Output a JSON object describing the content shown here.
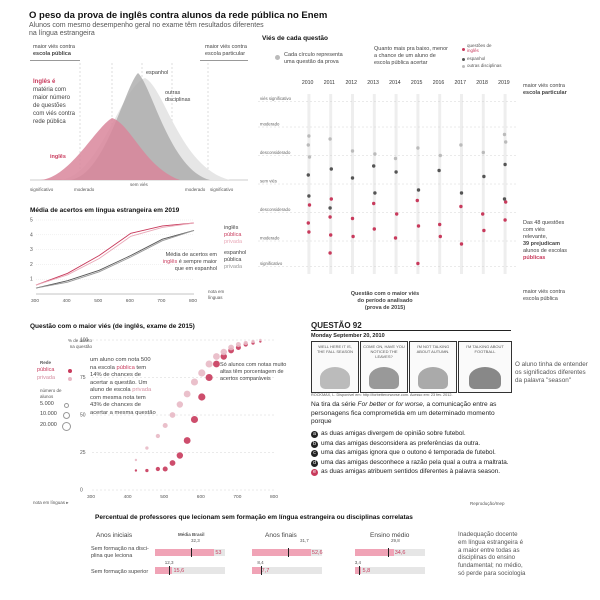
{
  "header": {
    "title": "O peso da prova de inglês contra alunos da rede pública no Enem",
    "subtitle_line1": "Alunos com mesmo desempenho geral no exame têm resultados diferentes",
    "subtitle_line2": "na língua estrangeira"
  },
  "density_panel": {
    "left_arrow_label_1": "maior viés contra",
    "left_arrow_label_2": "escola pública",
    "right_arrow_label_1": "maior viés contra",
    "right_arrow_label_2": "escola particular",
    "note_1": "Inglês é",
    "note_2": "matéria com",
    "note_3": "maior número",
    "note_4": "de questões",
    "note_5": "com viés contra",
    "note_6": "rede pública",
    "label_espanhol": "espanhol",
    "label_outras_1": "outras",
    "label_outras_2": "disciplinas",
    "label_ingles": "inglês",
    "axis_significativo_left": "significativo",
    "axis_moderado_left": "moderado",
    "axis_sem_vies": "sem viés",
    "axis_moderado_right": "moderado",
    "axis_significativo_right": "significativo",
    "colors": {
      "ingles": "#d9869b",
      "espanhol": "#aaaaaa",
      "outras": "#dddddd"
    }
  },
  "line_panel": {
    "title": "Média de acertos em língua estrangeira em 2019",
    "note_1": "Média de acertos em",
    "note_2a": "inglês",
    "note_2b": " é sempre maior",
    "note_3": "que em espanhol",
    "legend_ingles_1": "inglês",
    "legend_ingles_2": "pública",
    "legend_ingles_3": "privada",
    "legend_espanhol_1": "espanhol",
    "legend_espanhol_2": "pública",
    "legend_espanhol_3": "privada",
    "xlabel_1": "nota em",
    "xlabel_2": "línguas"
  },
  "years_panel": {
    "title": "Viés de cada questão",
    "legend_circle_1": "Cada círculo representa",
    "legend_circle_2": "uma questão da prova",
    "legend_rank_1": "Quanto mais pra baixo, menor",
    "legend_rank_2": "a chance de um aluno de",
    "legend_rank_3": "escola pública acertar",
    "legend_items": [
      "questões de",
      "inglês",
      "espanhol",
      "outras disciplinas"
    ],
    "years": [
      "2010",
      "2011",
      "2012",
      "2013",
      "2014",
      "2015",
      "2016",
      "2017",
      "2018",
      "2019"
    ],
    "row_labels": [
      "viés significativo",
      "moderado",
      "desconsiderado",
      "sem viés",
      "desconsiderado",
      "moderado",
      "significativo"
    ],
    "right_top_1": "maior viés contra",
    "right_top_2": "escola particular",
    "right_note_1": "Das 48 questões",
    "right_note_2": "com viés",
    "right_note_3": "relevante,",
    "right_note_4": "39 prejudicam",
    "right_note_5": "alunos de escolas",
    "right_note_6": "públicas",
    "right_bottom_1": "maior viés contra",
    "right_bottom_2": "escola pública",
    "callout_1": "Questão com o maior viés",
    "callout_2": "do período analisado",
    "callout_3": "(prova de 2015)"
  },
  "scatter_panel": {
    "title": "Questão com o maior viés (de inglês, exame de 2015)",
    "ylabel_1": "% de acerto",
    "ylabel_2": "na questão",
    "legend_rede": "Rede",
    "legend_publica": "pública",
    "legend_privada": "privada",
    "legend_numero_1": "número de",
    "legend_numero_2": "alunos",
    "legend_sizes": [
      "5.000",
      "10.000",
      "20.000"
    ],
    "note_left_1": "um aluno com nota 500",
    "note_left_2": "na escola ",
    "note_left_2b": "pública",
    "note_left_2c": " tem",
    "note_left_3": "14% de chances de",
    "note_left_4": "acertar a questão. Um",
    "note_left_5": "aluno de escola ",
    "note_left_5b": "privada",
    "note_left_6": "com mesma nota tem",
    "note_left_7": "43% de chances de",
    "note_left_8": "acertar a mesma questão",
    "note_right_1": "Só alunos com notas muito",
    "note_right_2": "altas têm porcentagem de",
    "note_right_3": "acertos comparáveis",
    "xlabel": "nota em línguas ▸"
  },
  "question_panel": {
    "title": "QUESTÃO 92",
    "comic_date": "Monday September 20, 2010",
    "comic_credit": "ROCKMAX, L. Disponível em: http://forbetterorworse.com. Acesso em: 23 fev. 2012.",
    "panel_texts": [
      "WELL HERE IT IS, THE FALL SEASON",
      "COME ON, HAVE YOU NOTICED THE LEAVES?",
      "I'M NOT TALKING ABOUT AUTUMN.",
      "I'M TALKING ABOUT FOOTBALL"
    ],
    "intro_1": "Na tira da série ",
    "intro_italic": "For better or for worse",
    "intro_2": ", a comunicação entre as personagens fica comprometida em um determinado momento porque",
    "options": [
      {
        "letter": "a",
        "text": "as duas amigas divergem de opinião sobre futebol."
      },
      {
        "letter": "b",
        "text": "uma das amigas desconsidera as preferências da outra."
      },
      {
        "letter": "c",
        "text": "uma das amigas ignora que o outono é temporada de futebol."
      },
      {
        "letter": "d",
        "text": "uma das amigas desconhece a razão pela qual a outra a maltrata."
      },
      {
        "letter": "e",
        "text": "as duas amigas atribuem sentidos diferentes à palavra season."
      }
    ],
    "reproduction": "Reprodução/Inep",
    "side_note_1": "O aluno tinha de entender",
    "side_note_2": "os significados diferentes",
    "side_note_3": "da palavra \"season\""
  },
  "bars_panel": {
    "title": "Percentual de professores que lecionam sem formação em língua estrangeira ou disciplinas correlatas",
    "groups": [
      {
        "name": "Anos iniciais",
        "media_label": "Média Brasil",
        "media": "32,3",
        "rows": [
          {
            "label": "Sem formação na disci-",
            "label2": "plina que leciona",
            "value": 53,
            "value_text": "53",
            "media_text": "32,3"
          },
          {
            "label": "Sem formação superior",
            "label2": "",
            "value": 15.6,
            "value_text": "15,6",
            "media_text": "12,3"
          }
        ]
      },
      {
        "name": "Anos finais",
        "media_label": "",
        "media": "31,7",
        "rows": [
          {
            "label": "",
            "label2": "",
            "value": 52.6,
            "value_text": "52,6",
            "media_text": "31,7"
          },
          {
            "label": "",
            "label2": "",
            "value": 7.7,
            "value_text": "7,7",
            "media_text": "8,4"
          }
        ]
      },
      {
        "name": "Ensino médio",
        "media_label": "",
        "media": "29,8",
        "rows": [
          {
            "label": "",
            "label2": "",
            "value": 34.6,
            "value_text": "34,6",
            "media_text": "29,8"
          },
          {
            "label": "",
            "label2": "",
            "value": 5.8,
            "value_text": "5,8",
            "media_text": "3,4"
          }
        ]
      }
    ],
    "note_1": "Inadequação docente",
    "note_2": "em língua estrangeira é",
    "note_3": "a maior entre todas as",
    "note_4": "disciplinas do ensino",
    "note_5": "fundamental; no médio,",
    "note_6": "só perde para sociologia"
  },
  "chart_data": [
    {
      "type": "area",
      "title": "",
      "xlabel": "",
      "ylabel": "",
      "x_categories": [
        "significativo",
        "moderado",
        "sem viés",
        "moderado",
        "significativo"
      ],
      "series": [
        {
          "name": "outras disciplinas",
          "peak_position": "sem viés",
          "color": "#dddddd"
        },
        {
          "name": "espanhol",
          "peak_position": "sem viés",
          "color": "#aaaaaa"
        },
        {
          "name": "inglês",
          "peak_position": "moderado",
          "color": "#d9869b"
        }
      ]
    },
    {
      "type": "line",
      "title": "Média de acertos em língua estrangeira em 2019",
      "xlabel": "nota em línguas",
      "ylabel": "",
      "x": [
        300,
        400,
        500,
        600,
        700,
        800
      ],
      "ylim": [
        0,
        5
      ],
      "yticks": [
        1,
        2,
        3,
        4,
        5
      ],
      "series": [
        {
          "name": "inglês pública",
          "values": [
            0.6,
            1.4,
            2.6,
            4.1,
            4.6,
            4.8
          ],
          "color": "#c83a5c",
          "dash": false
        },
        {
          "name": "inglês privada",
          "values": [
            0.6,
            1.3,
            2.4,
            3.9,
            4.5,
            4.8
          ],
          "color": "#e9a9b8",
          "dash": false
        },
        {
          "name": "espanhol pública",
          "values": [
            0.4,
            0.9,
            1.6,
            2.6,
            3.7,
            4.3
          ],
          "color": "#555555",
          "dash": false
        },
        {
          "name": "espanhol privada",
          "values": [
            0.4,
            0.8,
            1.5,
            2.5,
            3.6,
            4.3
          ],
          "color": "#999999",
          "dash": false
        }
      ]
    },
    {
      "type": "scatter",
      "title": "Viés de cada questão",
      "x_categories": [
        "2010",
        "2011",
        "2012",
        "2013",
        "2014",
        "2015",
        "2016",
        "2017",
        "2018",
        "2019"
      ],
      "y_range": [
        -6,
        6
      ],
      "series": [
        {
          "name": "questões de inglês",
          "color": "#c83a5c",
          "points": [
            [
              0,
              -2.6
            ],
            [
              0,
              -3.2
            ],
            [
              0,
              -1.4
            ],
            [
              1,
              -2.2
            ],
            [
              1,
              -3.4
            ],
            [
              1,
              -1.0
            ],
            [
              1,
              -4.6
            ],
            [
              2,
              -2.3
            ],
            [
              2,
              -3.5
            ],
            [
              3,
              -1.3
            ],
            [
              3,
              -3.0
            ],
            [
              4,
              -2.0
            ],
            [
              4,
              -3.6
            ],
            [
              5,
              -5.3
            ],
            [
              5,
              -2.8
            ],
            [
              5,
              -1.1
            ],
            [
              6,
              -2.7
            ],
            [
              6,
              -3.5
            ],
            [
              7,
              -1.5
            ],
            [
              7,
              -4.0
            ],
            [
              8,
              -3.1
            ],
            [
              8,
              -2.0
            ],
            [
              9,
              -2.4
            ],
            [
              9,
              -1.2
            ]
          ]
        },
        {
          "name": "espanhol",
          "color": "#555555",
          "points": [
            [
              0,
              0.6
            ],
            [
              0,
              -0.8
            ],
            [
              1,
              1.0
            ],
            [
              1,
              -1.6
            ],
            [
              2,
              0.4
            ],
            [
              3,
              -0.6
            ],
            [
              3,
              1.2
            ],
            [
              4,
              0.8
            ],
            [
              5,
              -0.4
            ],
            [
              6,
              0.9
            ],
            [
              7,
              -0.6
            ],
            [
              8,
              0.5
            ],
            [
              9,
              -1.0
            ],
            [
              9,
              1.3
            ]
          ]
        },
        {
          "name": "outras disciplinas",
          "color": "#bbbbbb",
          "points": [
            [
              0,
              2.6
            ],
            [
              0,
              3.2
            ],
            [
              0,
              1.8
            ],
            [
              1,
              3.0
            ],
            [
              2,
              2.2
            ],
            [
              3,
              2.0
            ],
            [
              4,
              1.7
            ],
            [
              5,
              2.4
            ],
            [
              6,
              1.9
            ],
            [
              7,
              2.6
            ],
            [
              8,
              2.1
            ],
            [
              9,
              2.8
            ],
            [
              9,
              3.3
            ]
          ]
        }
      ]
    },
    {
      "type": "scatter",
      "title": "Questão com o maior viés (de inglês, exame de 2015)",
      "xlabel": "nota em línguas",
      "ylabel": "% de acerto na questão",
      "xlim": [
        300,
        800
      ],
      "ylim": [
        0,
        100
      ],
      "xticks": [
        300,
        400,
        500,
        600,
        700,
        800
      ],
      "yticks": [
        0,
        25,
        50,
        75,
        100
      ],
      "series": [
        {
          "name": "pública",
          "color": "#c83a5c",
          "points": [
            [
              420,
              13
            ],
            [
              450,
              13
            ],
            [
              480,
              14
            ],
            [
              500,
              14
            ],
            [
              520,
              18
            ],
            [
              540,
              23
            ],
            [
              560,
              33
            ],
            [
              580,
              47
            ],
            [
              600,
              62
            ],
            [
              620,
              75
            ],
            [
              640,
              84
            ],
            [
              660,
              89
            ],
            [
              680,
              93
            ],
            [
              700,
              95
            ],
            [
              720,
              97
            ],
            [
              740,
              98
            ],
            [
              760,
              99
            ]
          ]
        },
        {
          "name": "privada",
          "color": "#e8b9c5",
          "points": [
            [
              420,
              20
            ],
            [
              450,
              28
            ],
            [
              480,
              36
            ],
            [
              500,
              43
            ],
            [
              520,
              50
            ],
            [
              540,
              57
            ],
            [
              560,
              64
            ],
            [
              580,
              72
            ],
            [
              600,
              78
            ],
            [
              620,
              84
            ],
            [
              640,
              89
            ],
            [
              660,
              92
            ],
            [
              680,
              95
            ],
            [
              700,
              97
            ],
            [
              720,
              98
            ],
            [
              740,
              99
            ],
            [
              760,
              100
            ]
          ]
        }
      ]
    },
    {
      "type": "bar",
      "title": "Percentual de professores que lecionam sem formação em língua estrangeira ou disciplinas correlatas",
      "categories": [
        "Anos iniciais",
        "Anos finais",
        "Ensino médio"
      ],
      "series": [
        {
          "name": "Sem formação na disciplina que leciona",
          "values": [
            53,
            52.6,
            34.6
          ]
        },
        {
          "name": "Sem formação superior",
          "values": [
            15.6,
            7.7,
            5.8
          ]
        }
      ],
      "media_brasil": [
        [
          32.3,
          12.3
        ],
        [
          31.7,
          8.4
        ],
        [
          29.8,
          3.4
        ]
      ]
    }
  ]
}
